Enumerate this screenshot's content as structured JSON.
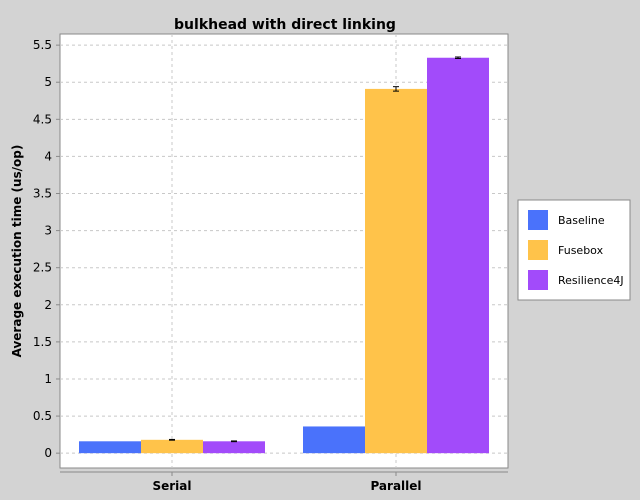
{
  "chart_data": {
    "type": "bar",
    "title": "bulkhead with direct linking",
    "xlabel": "",
    "ylabel": "Average execution time (us/op)",
    "categories": [
      "Serial",
      "Parallel"
    ],
    "ylim": [
      -0.2,
      5.65
    ],
    "yticks": [
      "0",
      "0.5",
      "1",
      "1.5",
      "2",
      "2.5",
      "3",
      "3.5",
      "4",
      "4.5",
      "5",
      "5.5"
    ],
    "grid": true,
    "legend_position": "right",
    "series": [
      {
        "name": "Baseline",
        "color": "#4a72fb",
        "values": [
          0.16,
          0.36
        ],
        "errors": [
          0.0,
          0.0
        ]
      },
      {
        "name": "Fusebox",
        "color": "#ffc34a",
        "values": [
          0.18,
          4.91
        ],
        "errors": [
          0.005,
          0.03
        ]
      },
      {
        "name": "Resilience4J",
        "color": "#a24bfa",
        "values": [
          0.16,
          5.33
        ],
        "errors": [
          0.005,
          0.01
        ]
      }
    ]
  }
}
